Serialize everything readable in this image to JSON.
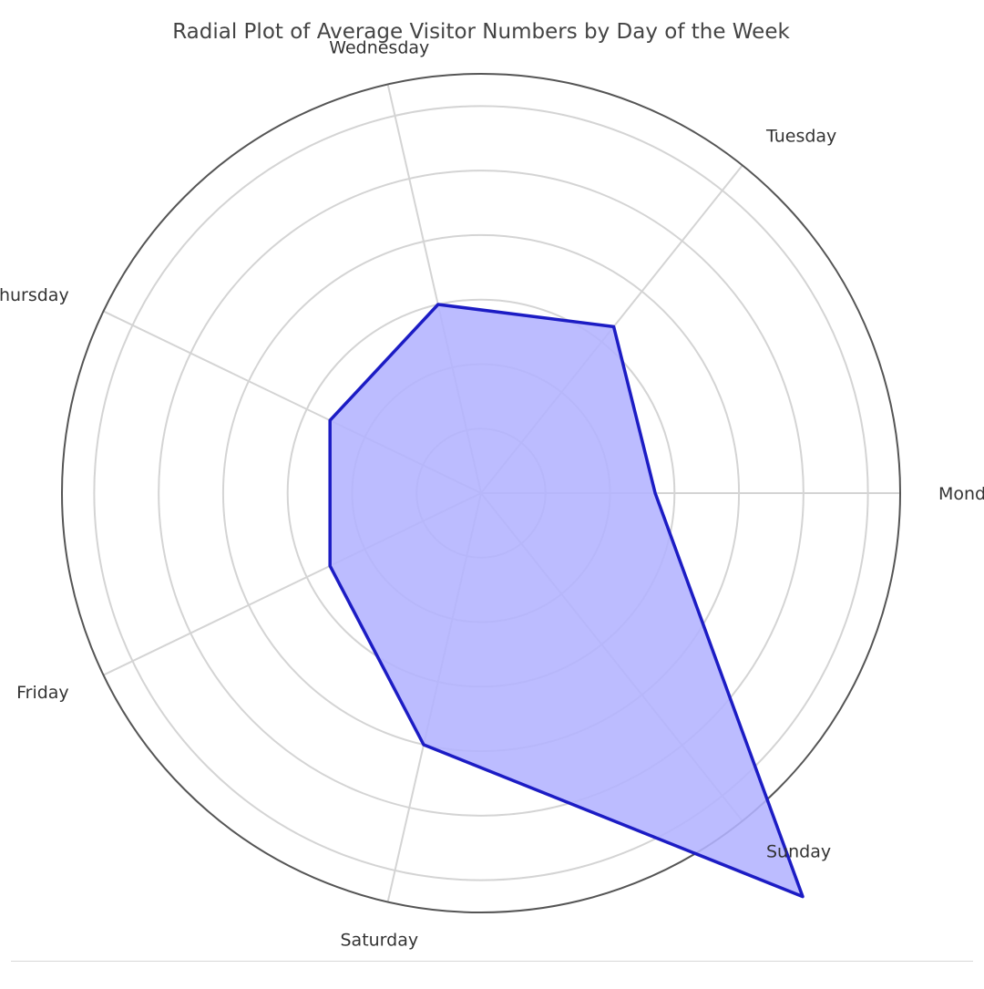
{
  "chart_data": {
    "type": "radar",
    "title": "Radial Plot of Average Visitor Numbers by Day of the Week",
    "categories": [
      "Monday",
      "Tuesday",
      "Wednesday",
      "Thursday",
      "Friday",
      "Saturday",
      "Sunday"
    ],
    "series": [
      {
        "values": [
          135,
          165,
          150,
          130,
          130,
          200,
          400
        ]
      }
    ],
    "rlim": [
      0,
      325
    ],
    "rgrid_values": [
      50,
      100,
      150,
      200,
      250,
      300
    ],
    "radial_tick_labels_visible": false,
    "grid": true,
    "legend": "none",
    "colors": {
      "fill": "#b3b3ff",
      "line": "#1c1cc4",
      "grid": "#d4d4d4",
      "outer_ring": "#555555",
      "text": "#333333"
    }
  }
}
